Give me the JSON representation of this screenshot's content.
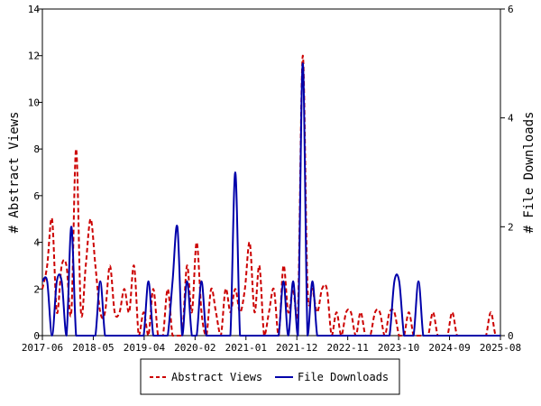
{
  "chart_data": {
    "type": "line",
    "x_ticks": [
      "2017-06",
      "2018-05",
      "2019-04",
      "2020-02",
      "2021-01",
      "2021-12",
      "2022-11",
      "2023-10",
      "2024-09",
      "2025-08"
    ],
    "y_left": {
      "label": "# Abstract Views",
      "ticks": [
        "0",
        "2",
        "4",
        "6",
        "8",
        "10",
        "12",
        "14"
      ],
      "range": [
        0,
        14
      ]
    },
    "y_right": {
      "label": "# File Downloads",
      "ticks": [
        "0",
        "2",
        "4",
        "6"
      ],
      "range": [
        0,
        6
      ]
    },
    "grid": false,
    "legend_position": "bottom",
    "series": [
      {
        "name": "Abstract Views",
        "axis": "left",
        "color": "#cc0000",
        "style": "dashed",
        "values": [
          2,
          3,
          5,
          1,
          3,
          3,
          1,
          8,
          1,
          3,
          5,
          3,
          1,
          1,
          3,
          1,
          1,
          2,
          1,
          3,
          0,
          1,
          0,
          2,
          0,
          0,
          2,
          0,
          0,
          0,
          3,
          1,
          4,
          1,
          0,
          2,
          1,
          0,
          2,
          1,
          2,
          1,
          2,
          4,
          1,
          3,
          0,
          1,
          2,
          0,
          3,
          1,
          2,
          1,
          12,
          2,
          2,
          1,
          2,
          2,
          0,
          1,
          0,
          1,
          1,
          0,
          1,
          0,
          0,
          1,
          1,
          0,
          1,
          1,
          0,
          0,
          1,
          0,
          0,
          0,
          0,
          1,
          0,
          0,
          0,
          1,
          0,
          0,
          0,
          0,
          0,
          0,
          0,
          1,
          0,
          0
        ]
      },
      {
        "name": "File Downloads",
        "axis": "right",
        "color": "#0000aa",
        "style": "solid",
        "values": [
          1,
          1,
          0,
          1,
          1,
          0,
          2,
          0,
          0,
          0,
          0,
          0,
          1,
          0,
          0,
          0,
          0,
          0,
          0,
          0,
          0,
          0,
          1,
          0,
          0,
          0,
          0,
          1,
          2,
          0,
          1,
          0,
          0,
          1,
          0,
          0,
          0,
          0,
          0,
          0,
          3,
          0,
          0,
          0,
          0,
          0,
          0,
          0,
          0,
          0,
          1,
          0,
          1,
          0,
          5,
          0,
          1,
          0,
          0,
          0,
          0,
          0,
          0,
          0,
          0,
          0,
          0,
          0,
          0,
          0,
          0,
          0,
          0,
          1,
          1,
          0,
          0,
          0,
          1,
          0,
          0,
          0,
          0,
          0,
          0,
          0,
          0,
          0,
          0,
          0,
          0,
          0,
          0,
          0,
          0,
          0
        ]
      }
    ]
  }
}
